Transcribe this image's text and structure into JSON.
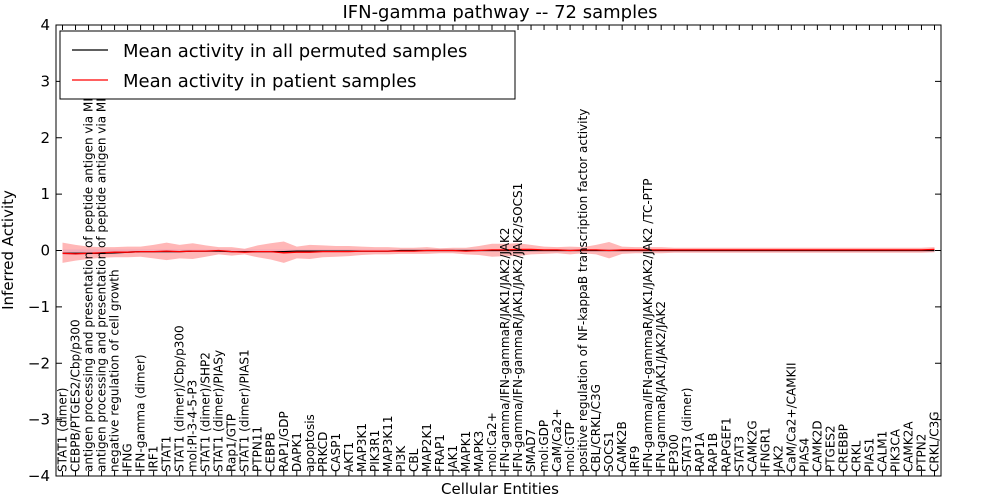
{
  "chart_data": {
    "type": "line",
    "title": "IFN-gamma pathway -- 72 samples",
    "xlabel": "Cellular Entities",
    "ylabel": "Inferred Activity",
    "ylim": [
      -4,
      4
    ],
    "yticks": [
      -4,
      -3,
      -2,
      -1,
      0,
      1,
      2,
      3,
      4
    ],
    "legend_position": "upper-left",
    "categories": [
      "STAT1 (dimer)",
      "CEBPB/PTGES2/Cbp/p300",
      "antigen processing and presentation of peptide antigen via MHC class I",
      "antigen processing and presentation of peptide antigen via MHC class II",
      "negative regulation of cell growth",
      "IFNG",
      "IFN-gamma (dimer)",
      "IRF1",
      "STAT1",
      "STAT1 (dimer)/Cbp/p300",
      "mol:PI-3-4-5-P3",
      "STAT1 (dimer)/SHP2",
      "STAT1 (dimer)/PIASy",
      "Rap1/GTP",
      "STAT1 (dimer)/PIAS1",
      "PTPN11",
      "CEBPB",
      "RAP1/GDP",
      "DAPK1",
      "apoptosis",
      "PRKCD",
      "CASP1",
      "AKT1",
      "MAP3K1",
      "PIK3R1",
      "MAP3K11",
      "PI3K",
      "CBL",
      "MAP2K1",
      "FRAP1",
      "JAK1",
      "MAPK1",
      "MAPK3",
      "mol:Ca2+",
      "IFN-gamma/IFN-gammaR/JAK1/JAK2/JAK2",
      "IFN-gamma/IFN-gammaR/JAK1/JAK2/JAK2/SOCS1",
      "SMAD7",
      "mol:GDP",
      "CaM/Ca2+",
      "mol:GTP",
      "positive regulation of NF-kappaB transcription factor activity",
      "CBL/CRKL/C3G",
      "SOCS1",
      "CAMK2B",
      "IRF9",
      "IFN-gamma/IFN-gammaR/JAK1/JAK2/JAK2 /TC-PTP",
      "IFN-gammaR/JAK1/JAK2/JAK2",
      "EP300",
      "STAT3 (dimer)",
      "RAP1A",
      "RAP1B",
      "RAPGEF1",
      "STAT3",
      "CAMK2G",
      "IFNGR1",
      "JAK2",
      "CaM/Ca2+/CAMKII",
      "PIAS4",
      "CAMK2D",
      "PTGES2",
      "CREBBP",
      "CRKL",
      "PIAS1",
      "CALM1",
      "PIK3CA",
      "CAMK2A",
      "PTPN2",
      "CRKL/C3G"
    ],
    "series": [
      {
        "name": "Mean activity in all permuted samples",
        "color": "#000000",
        "values": [
          -0.05,
          -0.05,
          -0.05,
          -0.05,
          -0.04,
          -0.03,
          -0.02,
          -0.02,
          -0.02,
          -0.02,
          -0.01,
          -0.01,
          -0.01,
          -0.02,
          -0.02,
          -0.02,
          -0.02,
          -0.02,
          -0.01,
          -0.01,
          -0.01,
          -0.01,
          -0.01,
          -0.01,
          -0.01,
          -0.01,
          0,
          0,
          0,
          0,
          0,
          0,
          0,
          0,
          0,
          0,
          0,
          0,
          0,
          0,
          0,
          0,
          0,
          0,
          0,
          0,
          0,
          0,
          0,
          0,
          0,
          0,
          0,
          0,
          0,
          0,
          0,
          0,
          0,
          0,
          0,
          0,
          0,
          0,
          0,
          0,
          0,
          0
        ]
      },
      {
        "name": "Mean activity in patient samples",
        "color": "#ff0000",
        "values": [
          -0.05,
          -0.06,
          -0.05,
          -0.04,
          -0.03,
          -0.03,
          -0.02,
          -0.02,
          -0.01,
          -0.02,
          -0.01,
          -0.01,
          0,
          -0.02,
          -0.03,
          -0.02,
          -0.02,
          -0.04,
          -0.03,
          -0.03,
          -0.02,
          -0.02,
          -0.02,
          -0.01,
          -0.01,
          -0.01,
          -0.01,
          -0.01,
          0,
          0,
          0,
          -0.01,
          0,
          0.01,
          0.01,
          0.02,
          0.02,
          0.01,
          0.01,
          0,
          0.01,
          0.01,
          0,
          0.01,
          0.01,
          0.01,
          0.01,
          0.01,
          0.01,
          0.01,
          0.01,
          0.01,
          0.01,
          0.01,
          0.01,
          0.01,
          0.01,
          0.01,
          0.01,
          0.01,
          0.01,
          0.01,
          0.01,
          0.01,
          0.01,
          0.01,
          0.01,
          0.02
        ],
        "band_upper": [
          0.14,
          0.1,
          0.07,
          0.06,
          0.06,
          0.07,
          0.07,
          0.1,
          0.14,
          0.1,
          0.13,
          0.09,
          0.06,
          0.06,
          0.03,
          0.09,
          0.13,
          0.16,
          0.07,
          0.1,
          0.09,
          0.08,
          0.08,
          0.07,
          0.06,
          0.06,
          0.05,
          0.05,
          0.06,
          0.04,
          0.05,
          0.05,
          0.08,
          0.12,
          0.12,
          0.13,
          0.1,
          0.07,
          0.06,
          0.07,
          0.06,
          0.1,
          0.15,
          0.07,
          0.06,
          0.06,
          0.06,
          0.05,
          0.05,
          0.05,
          0.05,
          0.05,
          0.05,
          0.05,
          0.05,
          0.05,
          0.05,
          0.05,
          0.05,
          0.05,
          0.05,
          0.05,
          0.05,
          0.05,
          0.05,
          0.05,
          0.05,
          0.06
        ],
        "band_lower": [
          -0.22,
          -0.18,
          -0.15,
          -0.13,
          -0.12,
          -0.12,
          -0.11,
          -0.14,
          -0.17,
          -0.14,
          -0.15,
          -0.11,
          -0.07,
          -0.09,
          -0.07,
          -0.12,
          -0.16,
          -0.22,
          -0.14,
          -0.15,
          -0.12,
          -0.11,
          -0.1,
          -0.08,
          -0.07,
          -0.07,
          -0.06,
          -0.06,
          -0.06,
          -0.05,
          -0.05,
          -0.07,
          -0.08,
          -0.11,
          -0.1,
          -0.1,
          -0.07,
          -0.06,
          -0.05,
          -0.07,
          -0.05,
          -0.07,
          -0.14,
          -0.06,
          -0.05,
          -0.05,
          -0.05,
          -0.04,
          -0.04,
          -0.04,
          -0.04,
          -0.04,
          -0.04,
          -0.04,
          -0.04,
          -0.04,
          -0.04,
          -0.04,
          -0.04,
          -0.04,
          -0.04,
          -0.04,
          -0.04,
          -0.04,
          -0.04,
          -0.04,
          -0.04,
          -0.03
        ]
      }
    ],
    "permuted_band_upper": [
      0.02,
      0.02,
      0.02,
      0.02,
      0.02,
      0.02,
      0.02,
      0.02,
      0.02,
      0.02,
      0.02,
      0.02,
      0.02,
      0.02,
      0.02,
      0.02,
      0.02,
      0.02,
      0.02,
      0.02,
      0.02,
      0.02,
      0.02,
      0.02,
      0.02,
      0.02,
      0.02,
      0.02,
      0.02,
      0.02,
      0.02,
      0.02,
      0.02,
      0.02,
      0.02,
      0.02,
      0.02,
      0.02,
      0.02,
      0.02,
      0.02,
      0.02,
      0.02,
      0.02,
      0.02,
      0.02,
      0.02,
      0.02,
      0.02,
      0.02,
      0.02,
      0.02,
      0.02,
      0.02,
      0.02,
      0.02,
      0.02,
      0.02,
      0.02,
      0.02,
      0.02,
      0.02,
      0.02,
      0.02,
      0.02,
      0.02,
      0.02,
      0.02
    ],
    "permuted_band_lower": [
      -0.08,
      -0.08,
      -0.07,
      -0.07,
      -0.06,
      -0.05,
      -0.04,
      -0.04,
      -0.04,
      -0.04,
      -0.03,
      -0.03,
      -0.03,
      -0.04,
      -0.04,
      -0.04,
      -0.04,
      -0.04,
      -0.03,
      -0.03,
      -0.03,
      -0.03,
      -0.03,
      -0.03,
      -0.03,
      -0.03,
      -0.02,
      -0.02,
      -0.02,
      -0.02,
      -0.02,
      -0.02,
      -0.02,
      -0.02,
      -0.02,
      -0.02,
      -0.02,
      -0.02,
      -0.02,
      -0.02,
      -0.02,
      -0.02,
      -0.02,
      -0.02,
      -0.02,
      -0.02,
      -0.02,
      -0.02,
      -0.02,
      -0.02,
      -0.02,
      -0.02,
      -0.02,
      -0.02,
      -0.02,
      -0.02,
      -0.02,
      -0.02,
      -0.02,
      -0.02,
      -0.02,
      -0.02,
      -0.02,
      -0.02,
      -0.02,
      -0.02,
      -0.02,
      -0.02
    ]
  }
}
